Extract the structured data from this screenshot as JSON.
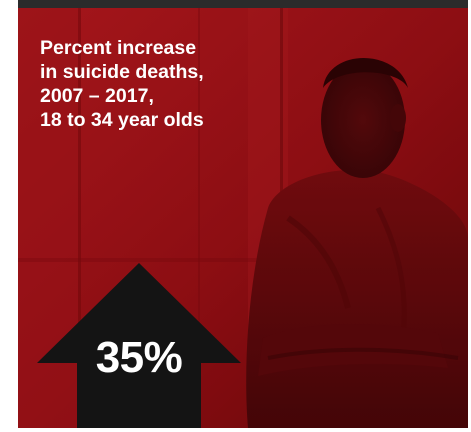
{
  "headline": {
    "lines": [
      "Percent increase",
      "in suicide deaths,",
      "2007 – 2017,",
      "18 to 34 year olds"
    ]
  },
  "statistic": {
    "value": "35%",
    "direction": "increase"
  },
  "colors": {
    "overlay": "#a5141a",
    "arrow": "#141414",
    "text": "#ffffff",
    "top_bar": "#2b2b2b"
  },
  "photo": {
    "description": "man in hooded sweatshirt looking out, arms folded"
  },
  "icons": [
    "up-arrow-icon"
  ]
}
